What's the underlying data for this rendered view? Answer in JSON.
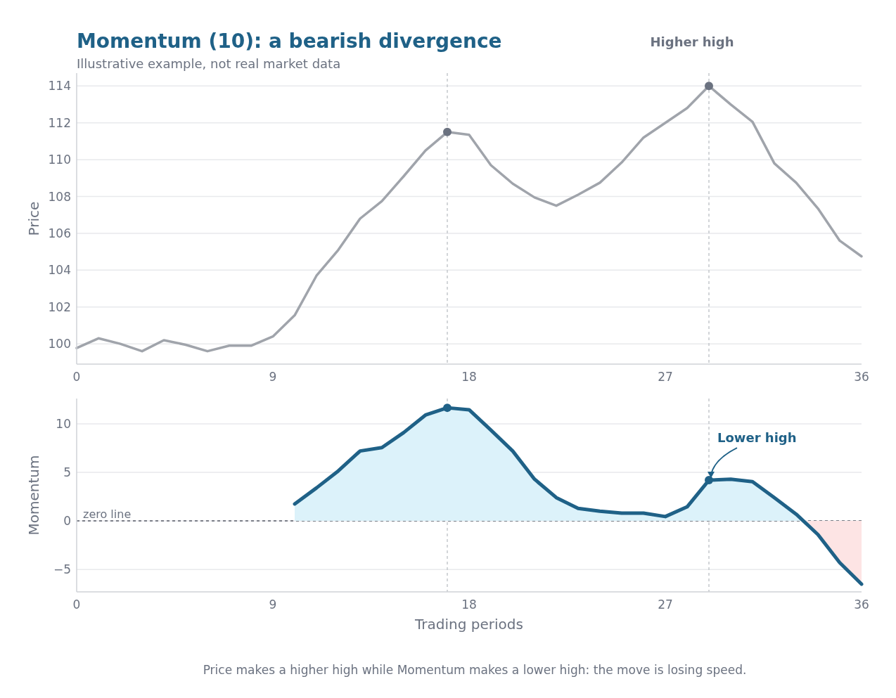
{
  "chart_data": [
    {
      "type": "line",
      "title": "Momentum (10): a bearish divergence",
      "subtitle": "Illustrative example, not real market data",
      "ylabel": "Price",
      "x": [
        0,
        1,
        2,
        3,
        4,
        5,
        6,
        7,
        8,
        9,
        10,
        11,
        12,
        13,
        14,
        15,
        16,
        17,
        18,
        19,
        20,
        21,
        22,
        23,
        24,
        25,
        26,
        27,
        28,
        29,
        30,
        31,
        32,
        33,
        34,
        35,
        36
      ],
      "series": [
        {
          "color": "#a0a4ab",
          "values": [
            99.77,
            100.3,
            100.0,
            99.6,
            100.2,
            99.95,
            99.6,
            99.9,
            99.9,
            100.4,
            101.55,
            103.7,
            105.1,
            106.8,
            107.75,
            109.1,
            110.5,
            111.5,
            111.35,
            109.7,
            108.7,
            107.95,
            107.5,
            108.1,
            108.75,
            109.85,
            111.2,
            112.0,
            112.8,
            114.0,
            113.0,
            112.05,
            109.8,
            108.75,
            107.35,
            105.6,
            104.75
          ]
        },
        {
          "type": "scatter",
          "color": "#6b7280",
          "x": [
            17,
            29
          ],
          "values": [
            111.5,
            114.0
          ]
        }
      ],
      "xlim": [
        0,
        36
      ],
      "xticks": [
        0,
        9,
        18,
        27,
        36
      ],
      "ylim": [
        98.9,
        114.7
      ],
      "yticks": [
        100,
        102,
        104,
        106,
        108,
        110,
        112,
        114
      ],
      "grid": "y",
      "ref_lines": [
        {
          "axis": "x",
          "value": 17,
          "color": "#c4c7cc",
          "line_style": "dashed"
        },
        {
          "axis": "x",
          "value": 29,
          "color": "#c4c7cc",
          "line_style": "dashed"
        }
      ],
      "annotations": [
        "Higher high"
      ]
    },
    {
      "type": "area",
      "xlabel": "Trading periods",
      "ylabel": "Momentum",
      "series": [
        {
          "color": "#1f6187",
          "x": [
            10,
            11,
            12,
            13,
            14,
            15,
            16,
            17,
            18,
            19,
            20,
            21,
            22,
            23,
            24,
            25,
            26,
            27,
            28,
            29,
            30,
            31,
            32,
            33,
            34,
            35,
            36
          ],
          "values": [
            1.75,
            3.4,
            5.15,
            7.2,
            7.55,
            9.1,
            10.9,
            11.65,
            11.45,
            9.35,
            7.2,
            4.3,
            2.4,
            1.3,
            1.0,
            0.8,
            0.8,
            0.45,
            1.45,
            4.2,
            4.3,
            4.05,
            2.4,
            0.7,
            -1.4,
            -4.3,
            -6.5
          ]
        },
        {
          "type": "scatter",
          "color": "#1f6187",
          "x": [
            17,
            29
          ],
          "values": [
            11.65,
            4.2
          ]
        }
      ],
      "xlim": [
        0,
        36
      ],
      "xticks": [
        0,
        9,
        18,
        27,
        36
      ],
      "ylim": [
        -7.3,
        12.6
      ],
      "yticks": [
        {
          "value": -5,
          "label": "−5"
        },
        0,
        5,
        10
      ],
      "grid": "y",
      "ref_lines": [
        {
          "axis": "y",
          "value": 0,
          "label": "zero line",
          "color": "#555b66",
          "line_style": "dashed"
        },
        {
          "axis": "x",
          "value": 17,
          "color": "#c4c7cc",
          "line_style": "dashed"
        },
        {
          "axis": "x",
          "value": 29,
          "color": "#c4c7cc",
          "line_style": "dashed"
        }
      ],
      "annotations": [
        {
          "text": "Lower high",
          "x": 29,
          "y": 4.2
        },
        "Price makes a higher high while Momentum makes a lower high: the move is losing speed."
      ]
    }
  ]
}
